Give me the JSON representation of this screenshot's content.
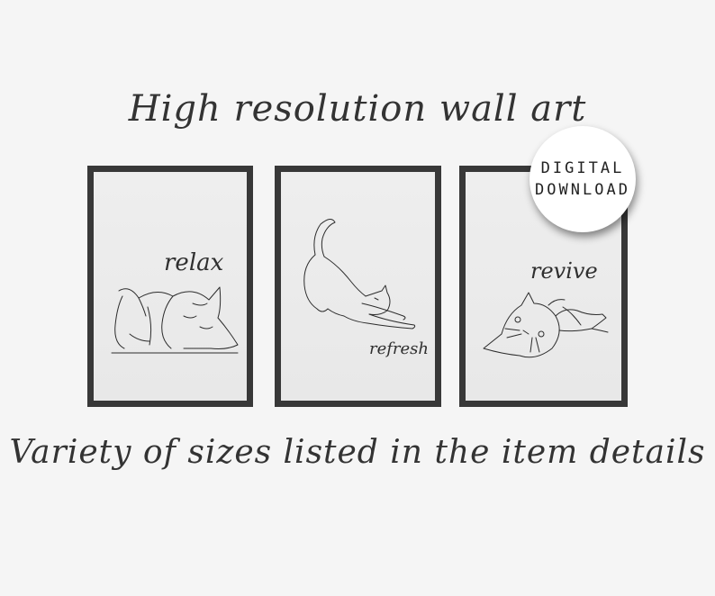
{
  "headline_top": "High resolution wall art",
  "headline_bottom": "Variety of sizes listed in the item details",
  "badge": {
    "line1": "DIGITAL",
    "line2": "DOWNLOAD"
  },
  "prints": [
    {
      "word": "relax",
      "subject": "sleeping-cat"
    },
    {
      "word": "refresh",
      "subject": "stretching-cat"
    },
    {
      "word": "revive",
      "subject": "rolling-cat"
    }
  ],
  "colors": {
    "background": "#f5f5f5",
    "frame": "#383838",
    "ink": "#333333",
    "badge": "#ffffff"
  }
}
